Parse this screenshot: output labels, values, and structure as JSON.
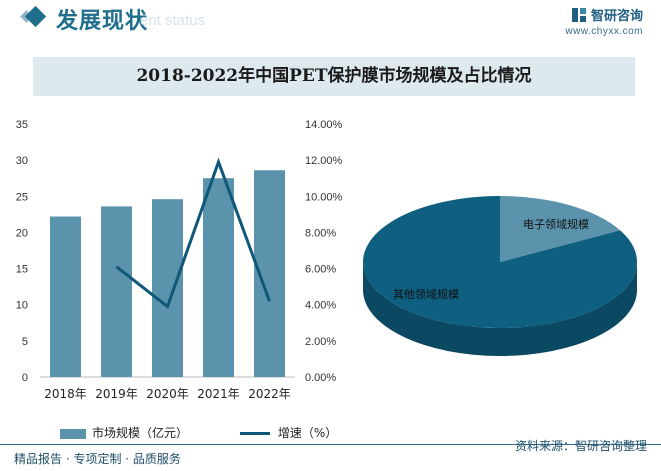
{
  "header": {
    "title": "发展现状",
    "subtitle": "ent status",
    "brand_name": "智研咨询",
    "brand_url": "www.chyxx.com"
  },
  "colors": {
    "bar": "#5b93ad",
    "line": "#0f5878",
    "pie_main": "#0e5f80",
    "pie_side": "#0b4962",
    "pie_small": "#5b93ad",
    "accent": "#1f6e8c"
  },
  "chart_data": [
    {
      "type": "bar",
      "title": "2018-2022年中国PET保护膜市场规模及占比情况",
      "categories": [
        "2018年",
        "2019年",
        "2020年",
        "2021年",
        "2022年"
      ],
      "series": [
        {
          "name": "市场规模（亿元）",
          "type": "bar",
          "axis": "left",
          "values": [
            22.2,
            23.6,
            24.6,
            27.5,
            28.6
          ]
        },
        {
          "name": "增速（%）",
          "type": "line",
          "axis": "right",
          "values": [
            null,
            6.1,
            3.9,
            11.9,
            4.2
          ]
        }
      ],
      "y_left": {
        "ticks": [
          "0",
          "5",
          "10",
          "15",
          "20",
          "25",
          "30",
          "35"
        ],
        "ylim": [
          0,
          35
        ]
      },
      "y_right": {
        "ticks": [
          "0.00%",
          "2.00%",
          "4.00%",
          "6.00%",
          "8.00%",
          "10.00%",
          "12.00%",
          "14.00%"
        ],
        "ylim": [
          0,
          14
        ]
      },
      "legend_position": "bottom"
    },
    {
      "type": "pie",
      "labels": [
        "电子领域规模",
        "其他领域规模"
      ],
      "values": [
        17,
        83
      ]
    }
  ],
  "footer": {
    "left": "精品报告 · 专项定制 · 品质服务",
    "source": "资料来源：智研咨询整理"
  }
}
